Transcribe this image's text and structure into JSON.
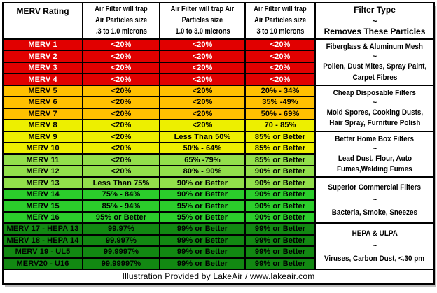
{
  "header": {
    "columns": [
      {
        "lines": [
          "MERV Rating"
        ]
      },
      {
        "lines": [
          "Air  Filter will trap",
          "Air Particles size",
          ".3 to 1.0 microns"
        ]
      },
      {
        "lines": [
          "Air  Filter will trap Air",
          "Particles size",
          "1.0 to 3.0 microns"
        ]
      },
      {
        "lines": [
          "Air  Filter will trap",
          "Air Particles size",
          "3  to 10 microns"
        ]
      },
      {
        "lines": [
          "Filter Type",
          "~",
          "Removes These Particles"
        ]
      }
    ]
  },
  "colors": {
    "red": "#e10000",
    "orange": "#ffc000",
    "yellow": "#edef00",
    "light_green": "#92df4b",
    "green": "#2bcd2b",
    "dark_green": "#128812",
    "text_on_red": "#ffffff",
    "text": "#000000",
    "border": "#000000",
    "panel": "#ffffff"
  },
  "rows": [
    {
      "rating": "MERV 1",
      "c1": "<20%",
      "c2": "<20%",
      "c3": "<20%",
      "color": "red"
    },
    {
      "rating": "MERV 2",
      "c1": "<20%",
      "c2": "<20%",
      "c3": "<20%",
      "color": "red"
    },
    {
      "rating": "MERV 3",
      "c1": "<20%",
      "c2": "<20%",
      "c3": "<20%",
      "color": "red"
    },
    {
      "rating": "MERV 4",
      "c1": "<20%",
      "c2": "<20%",
      "c3": "<20%",
      "color": "red"
    },
    {
      "rating": "MERV 5",
      "c1": "<20%",
      "c2": "<20%",
      "c3": "20% - 34%",
      "color": "orange"
    },
    {
      "rating": "MERV 6",
      "c1": "<20%",
      "c2": "<20%",
      "c3": "35% -49%",
      "color": "orange"
    },
    {
      "rating": "MERV 7",
      "c1": "<20%",
      "c2": "<20%",
      "c3": "50% - 69%",
      "color": "orange"
    },
    {
      "rating": "MERV 8",
      "c1": "<20%",
      "c2": "<20%",
      "c3": "70 - 85%",
      "color": "yellow"
    },
    {
      "rating": "MERV 9",
      "c1": "<20%",
      "c2": "Less Than 50%",
      "c3": "85% or Better",
      "color": "yellow"
    },
    {
      "rating": "MERV 10",
      "c1": "<20%",
      "c2": "50% - 64%",
      "c3": "85% or Better",
      "color": "yellow"
    },
    {
      "rating": "MERV 11",
      "c1": "<20%",
      "c2": "65% -79%",
      "c3": "85% or Better",
      "color": "light_green"
    },
    {
      "rating": "MERV 12",
      "c1": "<20%",
      "c2": "80% - 90%",
      "c3": "90% or Better",
      "color": "light_green"
    },
    {
      "rating": "MERV 13",
      "c1": "Less Than 75%",
      "c2": "90% or Better",
      "c3": "90% or Better",
      "color": "light_green"
    },
    {
      "rating": "MERV 14",
      "c1": "75% - 84%",
      "c2": "90% or Better",
      "c3": "90% or Better",
      "color": "green"
    },
    {
      "rating": "MERV 15",
      "c1": "85% - 94%",
      "c2": "95% or Better",
      "c3": "90% or Better",
      "color": "green"
    },
    {
      "rating": "MERV 16",
      "c1": "95% or Better",
      "c2": "95% or Better",
      "c3": "90% or Better",
      "color": "green"
    },
    {
      "rating": "MERV 17 - HEPA 13",
      "c1": "99.97%",
      "c2": "99% or Better",
      "c3": "99% or Better",
      "color": "dark_green"
    },
    {
      "rating": "MERV 18 - HEPA 14",
      "c1": "99.997%",
      "c2": "99% or Better",
      "c3": "99% or Better",
      "color": "dark_green"
    },
    {
      "rating": "MERV 19 - UL5",
      "c1": "99.9997%",
      "c2": "99% or Better",
      "c3": "99% or Better",
      "color": "dark_green"
    },
    {
      "rating": "MERV20 - U16",
      "c1": "99.99997%",
      "c2": "99% or Better",
      "c3": "99% or Better",
      "color": "dark_green"
    }
  ],
  "filter_groups": [
    {
      "span": 4,
      "name": "Fiberglass & Aluminum Mesh",
      "tilde": "~",
      "particles": [
        "Pollen, Dust Mites, Spray Paint,",
        "Carpet Fibres"
      ]
    },
    {
      "span": 4,
      "name": "Cheap Disposable Filters",
      "tilde": "~",
      "particles": [
        "Mold Spores, Cooking Dusts,",
        "Hair Spray, Furniture Polish"
      ]
    },
    {
      "span": 4,
      "name": "Better Home Box Filters",
      "tilde": "~",
      "particles": [
        "Lead Dust, Flour, Auto",
        "Fumes,Welding Fumes"
      ]
    },
    {
      "span": 4,
      "name": "Superior Commercial Filters",
      "tilde": "~",
      "particles": [
        "Bacteria, Smoke, Sneezes"
      ]
    },
    {
      "span": 4,
      "name": "HEPA &  ULPA",
      "tilde": "~",
      "particles": [
        "Viruses,  Carbon Dust, <.30 pm"
      ]
    }
  ],
  "footer": {
    "text": "Illustration Provided by LakeAir / www.lakeair.com"
  }
}
